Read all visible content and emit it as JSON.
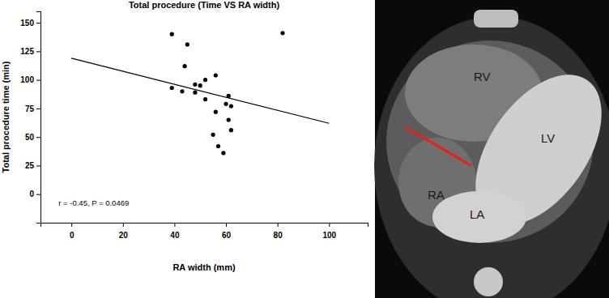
{
  "chart_data": {
    "type": "scatter",
    "title": "Total procedure (Time VS RA width)",
    "x_label": "RA width (mm)",
    "y_label": "Total procedure time (min)",
    "annotation": "r = -0.45, P = 0.0469",
    "xlim": [
      -12,
      115
    ],
    "ylim": [
      -25,
      160
    ],
    "xticks": [
      0,
      20,
      40,
      60,
      80,
      100
    ],
    "yticks": [
      0,
      25,
      50,
      75,
      100,
      125,
      150
    ],
    "grid": false,
    "series": [
      {
        "type": "scatter",
        "color": "#000000",
        "marker": "circle",
        "x": [
          39,
          39,
          43,
          44,
          45,
          48,
          48,
          50,
          52,
          52,
          55,
          56,
          56,
          57,
          59,
          60,
          61,
          61,
          62,
          62,
          82
        ],
        "values": [
          140,
          93,
          90,
          112,
          131,
          96,
          89,
          95,
          100,
          83,
          52,
          72,
          104,
          42,
          36,
          79,
          65,
          86,
          56,
          77,
          141
        ]
      },
      {
        "type": "line",
        "color": "#000000",
        "line_style": "solid",
        "x": [
          0,
          100
        ],
        "values": [
          119,
          62
        ]
      }
    ]
  },
  "ct_image": {
    "labels": [
      "RV",
      "LV",
      "RA",
      "LA"
    ],
    "measure_color": "#e8201a"
  }
}
